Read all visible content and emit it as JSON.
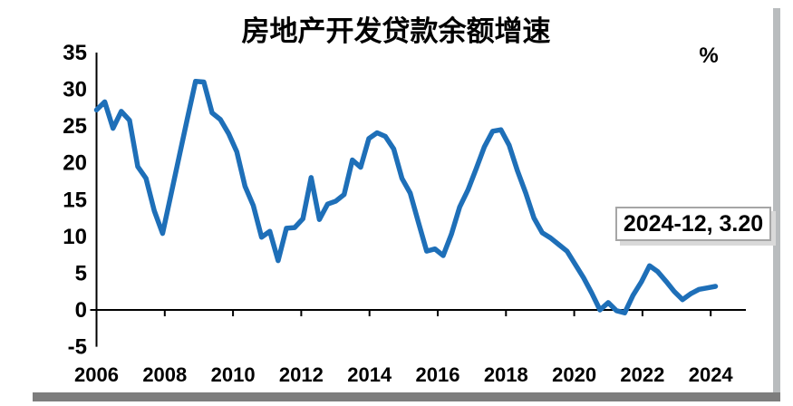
{
  "title": "房地产开发贷款余额增速",
  "unit_label": "%",
  "annotation": {
    "label": "2024-12, 3.20"
  },
  "chart_data": {
    "type": "line",
    "title": "房地产开发贷款余额增速",
    "ylabel": "%",
    "ylim": [
      -5,
      35
    ],
    "y_ticks": [
      35,
      30,
      25,
      20,
      15,
      10,
      5,
      0,
      -5
    ],
    "x_tick_labels": [
      "2006",
      "2008",
      "2010",
      "2012",
      "2014",
      "2016",
      "2018",
      "2020",
      "2022",
      "2024"
    ],
    "frequency": "quarterly",
    "x_start": "2006-Q1",
    "x_end": "2024-Q4",
    "values": [
      27.2,
      28.3,
      24.7,
      27.0,
      25.8,
      19.5,
      17.9,
      13.5,
      10.4,
      15.6,
      20.8,
      26.0,
      31.1,
      31.0,
      26.8,
      25.9,
      24.0,
      21.5,
      16.8,
      14.2,
      9.9,
      10.7,
      6.7,
      11.1,
      11.2,
      12.4,
      18.0,
      12.3,
      14.4,
      14.8,
      15.7,
      20.4,
      19.4,
      23.3,
      24.1,
      23.6,
      21.9,
      17.9,
      15.9,
      11.9,
      8.0,
      8.3,
      7.4,
      10.3,
      14.0,
      16.3,
      19.2,
      22.2,
      24.3,
      24.5,
      22.4,
      18.9,
      15.9,
      12.5,
      10.5,
      9.8,
      8.9,
      8.0,
      6.2,
      4.4,
      2.3,
      0.0,
      1.0,
      -0.1,
      -0.4,
      2.0,
      3.8,
      6.0,
      5.2,
      3.9,
      2.5,
      1.4,
      2.2,
      2.8,
      3.0,
      3.2
    ],
    "line_color": "#1e6fb8",
    "axis_color": "#000000",
    "grid": false,
    "legend": false,
    "last_point_annotation": {
      "x": "2024-12",
      "value": 3.2,
      "label": "2024-12, 3.20"
    }
  }
}
